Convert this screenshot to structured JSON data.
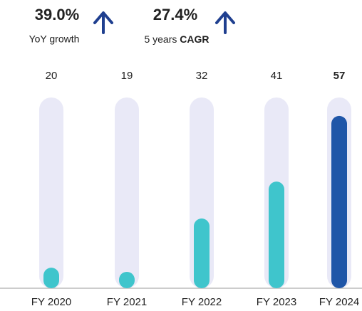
{
  "kpis": [
    {
      "value": "39.0%",
      "label": "YoY growth"
    },
    {
      "value": "27.4%",
      "label_prefix": "5 years",
      "label_bold": "CAGR"
    }
  ],
  "chart_data": {
    "type": "bar",
    "categories": [
      "FY 2020",
      "FY 2021",
      "FY 2022",
      "FY 2023",
      "FY 2024"
    ],
    "values": [
      20,
      19,
      32,
      41,
      57
    ],
    "color": "#3fc5cc",
    "highlight_index": 4,
    "highlight_color": "#1f56a8",
    "track_color": "#e9e9f7",
    "ylim": [
      15,
      61.5
    ]
  }
}
